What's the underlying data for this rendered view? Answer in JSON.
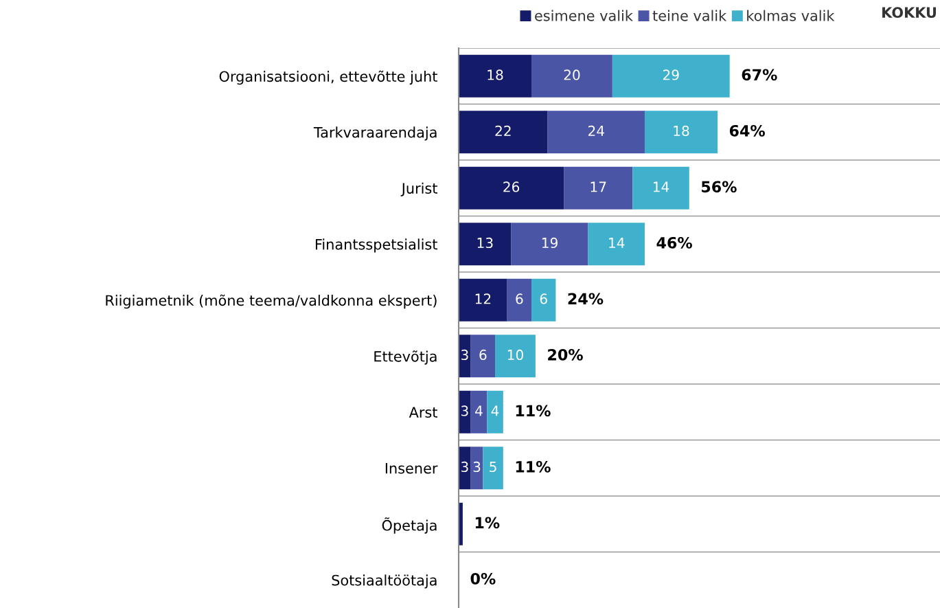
{
  "chart_data": {
    "type": "bar",
    "orientation": "horizontal",
    "stacked": true,
    "categories": [
      "Organisatsiooni, ettevõtte juht",
      "Tarkvaraarendaja",
      "Jurist",
      "Finantsspetsialist",
      "Riigiametnik (mõne teema/valdkonna ekspert)",
      "Ettevõtja",
      "Arst",
      "Insener",
      "Õpetaja",
      "Sotsiaaltöötaja"
    ],
    "series": [
      {
        "name": "esimene valik",
        "color": "#141c6a",
        "values": [
          18,
          22,
          26,
          13,
          12,
          3,
          3,
          3,
          1,
          0
        ],
        "value_labels": [
          "18",
          "22",
          "26",
          "13",
          "12",
          "3",
          "3",
          "3",
          null,
          null
        ]
      },
      {
        "name": "teine valik",
        "color": "#4a55a6",
        "values": [
          20,
          24,
          17,
          19,
          6,
          6,
          4,
          3,
          0,
          0
        ],
        "value_labels": [
          "20",
          "24",
          "17",
          "19",
          "6",
          "6",
          "4",
          "3",
          null,
          null
        ]
      },
      {
        "name": "kolmas valik",
        "color": "#40b1cc",
        "values": [
          29,
          18,
          14,
          14,
          6,
          10,
          4,
          5,
          0,
          0
        ],
        "value_labels": [
          "29",
          "18",
          "14",
          "14",
          "6",
          "10",
          "4",
          "5",
          null,
          null
        ]
      }
    ],
    "totals": [
      "67%",
      "64%",
      "56%",
      "46%",
      "24%",
      "20%",
      "11%",
      "11%",
      "1%",
      "0%"
    ],
    "annotations": [
      "KOKKU"
    ],
    "xlim": [
      0,
      119
    ],
    "tick_labels": "y",
    "grid": "y",
    "legend": "top right"
  }
}
